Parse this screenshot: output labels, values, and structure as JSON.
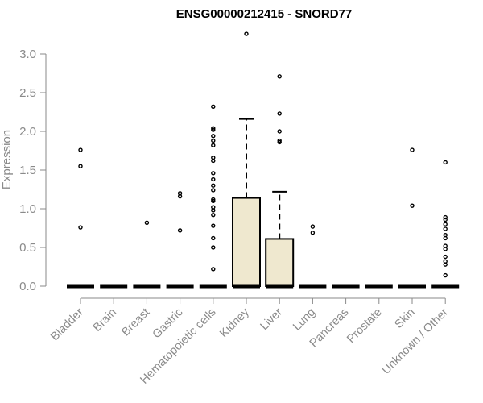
{
  "chart_data": {
    "type": "box",
    "title": "ENSG00000212415 - SNORD77",
    "ylabel": "Expression",
    "xlabel": "",
    "ylim": [
      0,
      3.3
    ],
    "yticks": [
      "0.0",
      "0.5",
      "1.0",
      "1.5",
      "2.0",
      "2.5",
      "3.0"
    ],
    "box_fill": "#efe8cf",
    "categories": [
      "Bladder",
      "Brain",
      "Breast",
      "Gastric",
      "Hematopoietic cells",
      "Kidney",
      "Liver",
      "Lung",
      "Pancreas",
      "Prostate",
      "Skin",
      "Unknown / Other"
    ],
    "boxes": [
      {
        "q1": 0,
        "median": 0,
        "q3": 0,
        "whisker_low": 0,
        "whisker_high": 0,
        "outliers": [
          0.76,
          1.55,
          1.76
        ]
      },
      {
        "q1": 0,
        "median": 0,
        "q3": 0,
        "whisker_low": 0,
        "whisker_high": 0,
        "outliers": []
      },
      {
        "q1": 0,
        "median": 0,
        "q3": 0,
        "whisker_low": 0,
        "whisker_high": 0,
        "outliers": [
          0.82
        ]
      },
      {
        "q1": 0,
        "median": 0,
        "q3": 0,
        "whisker_low": 0,
        "whisker_high": 0,
        "outliers": [
          0.72,
          1.16,
          1.2
        ]
      },
      {
        "q1": 0,
        "median": 0,
        "q3": 0,
        "whisker_low": 0,
        "whisker_high": 0,
        "outliers": [
          0.22,
          0.5,
          0.62,
          0.78,
          0.92,
          0.98,
          1.02,
          1.1,
          1.12,
          1.24,
          1.3,
          1.38,
          1.46,
          1.62,
          1.66,
          1.82,
          1.88,
          1.94,
          2.02,
          2.04,
          2.32
        ]
      },
      {
        "q1": 0,
        "median": 0,
        "q3": 1.14,
        "whisker_low": 0,
        "whisker_high": 2.16,
        "outliers": [
          3.26
        ]
      },
      {
        "q1": 0,
        "median": 0,
        "q3": 0.61,
        "whisker_low": 0,
        "whisker_high": 1.22,
        "outliers": [
          1.86,
          1.88,
          2.0,
          2.23,
          2.71
        ]
      },
      {
        "q1": 0,
        "median": 0,
        "q3": 0,
        "whisker_low": 0,
        "whisker_high": 0,
        "outliers": [
          0.69,
          0.77
        ]
      },
      {
        "q1": 0,
        "median": 0,
        "q3": 0,
        "whisker_low": 0,
        "whisker_high": 0,
        "outliers": []
      },
      {
        "q1": 0,
        "median": 0,
        "q3": 0,
        "whisker_low": 0,
        "whisker_high": 0,
        "outliers": []
      },
      {
        "q1": 0,
        "median": 0,
        "q3": 0,
        "whisker_low": 0,
        "whisker_high": 0,
        "outliers": [
          1.04,
          1.76
        ]
      },
      {
        "q1": 0,
        "median": 0,
        "q3": 0,
        "whisker_low": 0,
        "whisker_high": 0,
        "outliers": [
          0.14,
          0.28,
          0.32,
          0.38,
          0.48,
          0.52,
          0.62,
          0.66,
          0.74,
          0.8,
          0.86,
          0.89,
          1.6
        ]
      }
    ],
    "grid": false,
    "legend": "none"
  }
}
